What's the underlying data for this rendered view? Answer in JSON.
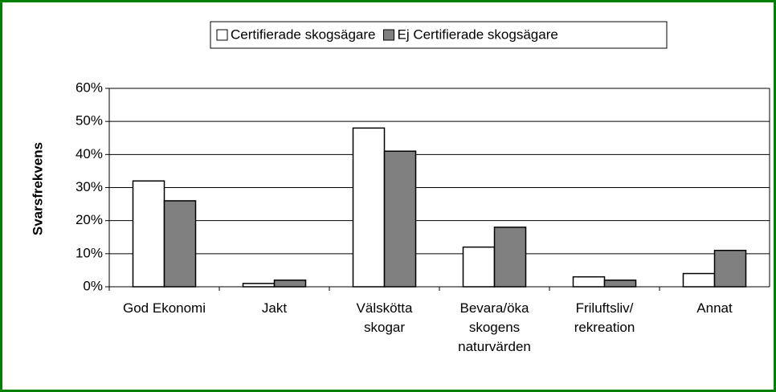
{
  "chart_data": {
    "type": "bar",
    "y_label": "Svarsfrekvens",
    "categories": [
      "God Ekonomi",
      "Jakt",
      "Välskötta\nskogar",
      "Bevara/öka\nskogens\nnaturvärden",
      "Friluftsliv/\nrekreation",
      "Annat"
    ],
    "series": [
      {
        "name": "Certifierade skogsägare",
        "color": "#ffffff",
        "values": [
          32,
          1,
          48,
          12,
          3,
          4
        ]
      },
      {
        "name": "Ej Certifierade skogsägare",
        "color": "#808080",
        "values": [
          26,
          2,
          41,
          18,
          2,
          11
        ]
      }
    ],
    "ylim": [
      0,
      60
    ],
    "yticks": [
      {
        "value": 0,
        "label": "0%"
      },
      {
        "value": 10,
        "label": "10%"
      },
      {
        "value": 20,
        "label": "20%"
      },
      {
        "value": 30,
        "label": "30%"
      },
      {
        "value": 40,
        "label": "40%"
      },
      {
        "value": 50,
        "label": "50%"
      },
      {
        "value": 60,
        "label": "60%"
      }
    ],
    "grid": true,
    "legend": "top"
  }
}
